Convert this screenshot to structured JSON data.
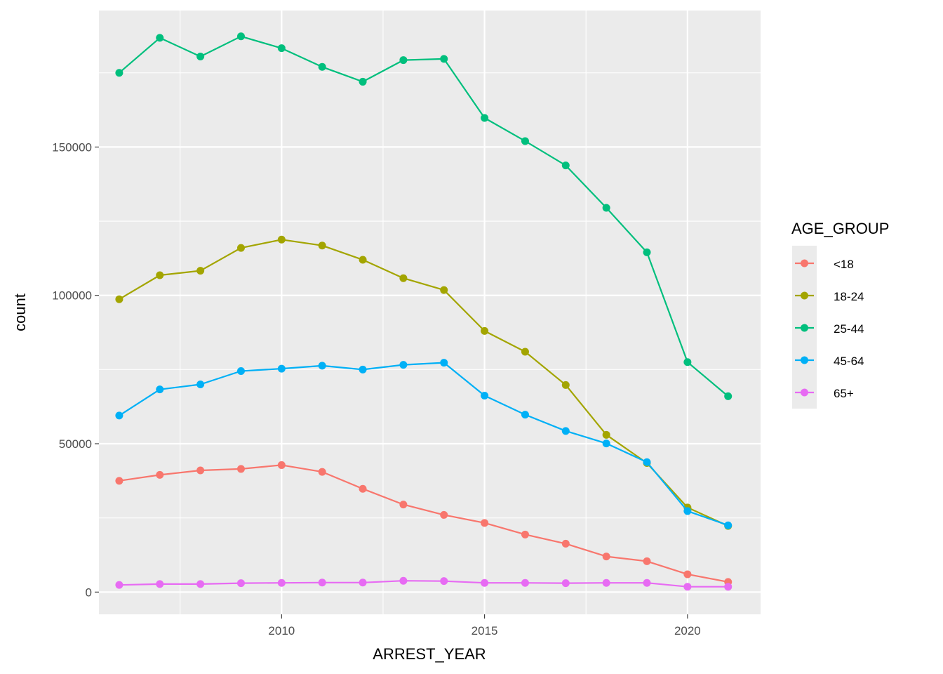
{
  "chart_data": {
    "type": "line",
    "xlabel": "ARREST_YEAR",
    "ylabel": "count",
    "xlim": [
      2005.5,
      2021.8
    ],
    "ylim": [
      -7500,
      196000
    ],
    "x_ticks": [
      2010,
      2015,
      2020
    ],
    "y_ticks": [
      0,
      50000,
      100000,
      150000
    ],
    "y_tick_labels": [
      "0",
      "50000",
      "100000",
      "150000"
    ],
    "grid": true,
    "legend": {
      "title": "AGE_GROUP",
      "position": "right"
    },
    "x": [
      2006,
      2007,
      2008,
      2009,
      2010,
      2011,
      2012,
      2013,
      2014,
      2015,
      2016,
      2017,
      2018,
      2019,
      2020,
      2021
    ],
    "series": [
      {
        "name": "<18",
        "color": "#F8766D",
        "values": [
          37500,
          39500,
          41000,
          41500,
          42800,
          40500,
          34800,
          29500,
          26000,
          23300,
          19400,
          16300,
          12000,
          10400,
          6000,
          3400
        ]
      },
      {
        "name": "18-24",
        "color": "#A3A500",
        "values": [
          98700,
          106800,
          108300,
          116000,
          118800,
          116800,
          112000,
          105800,
          101800,
          88000,
          81000,
          69800,
          53000,
          43500,
          28500,
          22300
        ]
      },
      {
        "name": "25-44",
        "color": "#00BF7D",
        "values": [
          175000,
          186800,
          180500,
          187300,
          183300,
          177000,
          172000,
          179300,
          179700,
          159800,
          152000,
          143800,
          129500,
          114500,
          77500,
          66000
        ]
      },
      {
        "name": "45-64",
        "color": "#00B0F6",
        "values": [
          59500,
          68300,
          70000,
          74500,
          75300,
          76300,
          75000,
          76600,
          77300,
          66200,
          59800,
          54300,
          50100,
          43800,
          27300,
          22500
        ]
      },
      {
        "name": "65+",
        "color": "#E76BF3",
        "values": [
          2400,
          2700,
          2700,
          3000,
          3100,
          3200,
          3200,
          3800,
          3700,
          3100,
          3100,
          3000,
          3100,
          3100,
          1800,
          1800
        ]
      }
    ]
  }
}
